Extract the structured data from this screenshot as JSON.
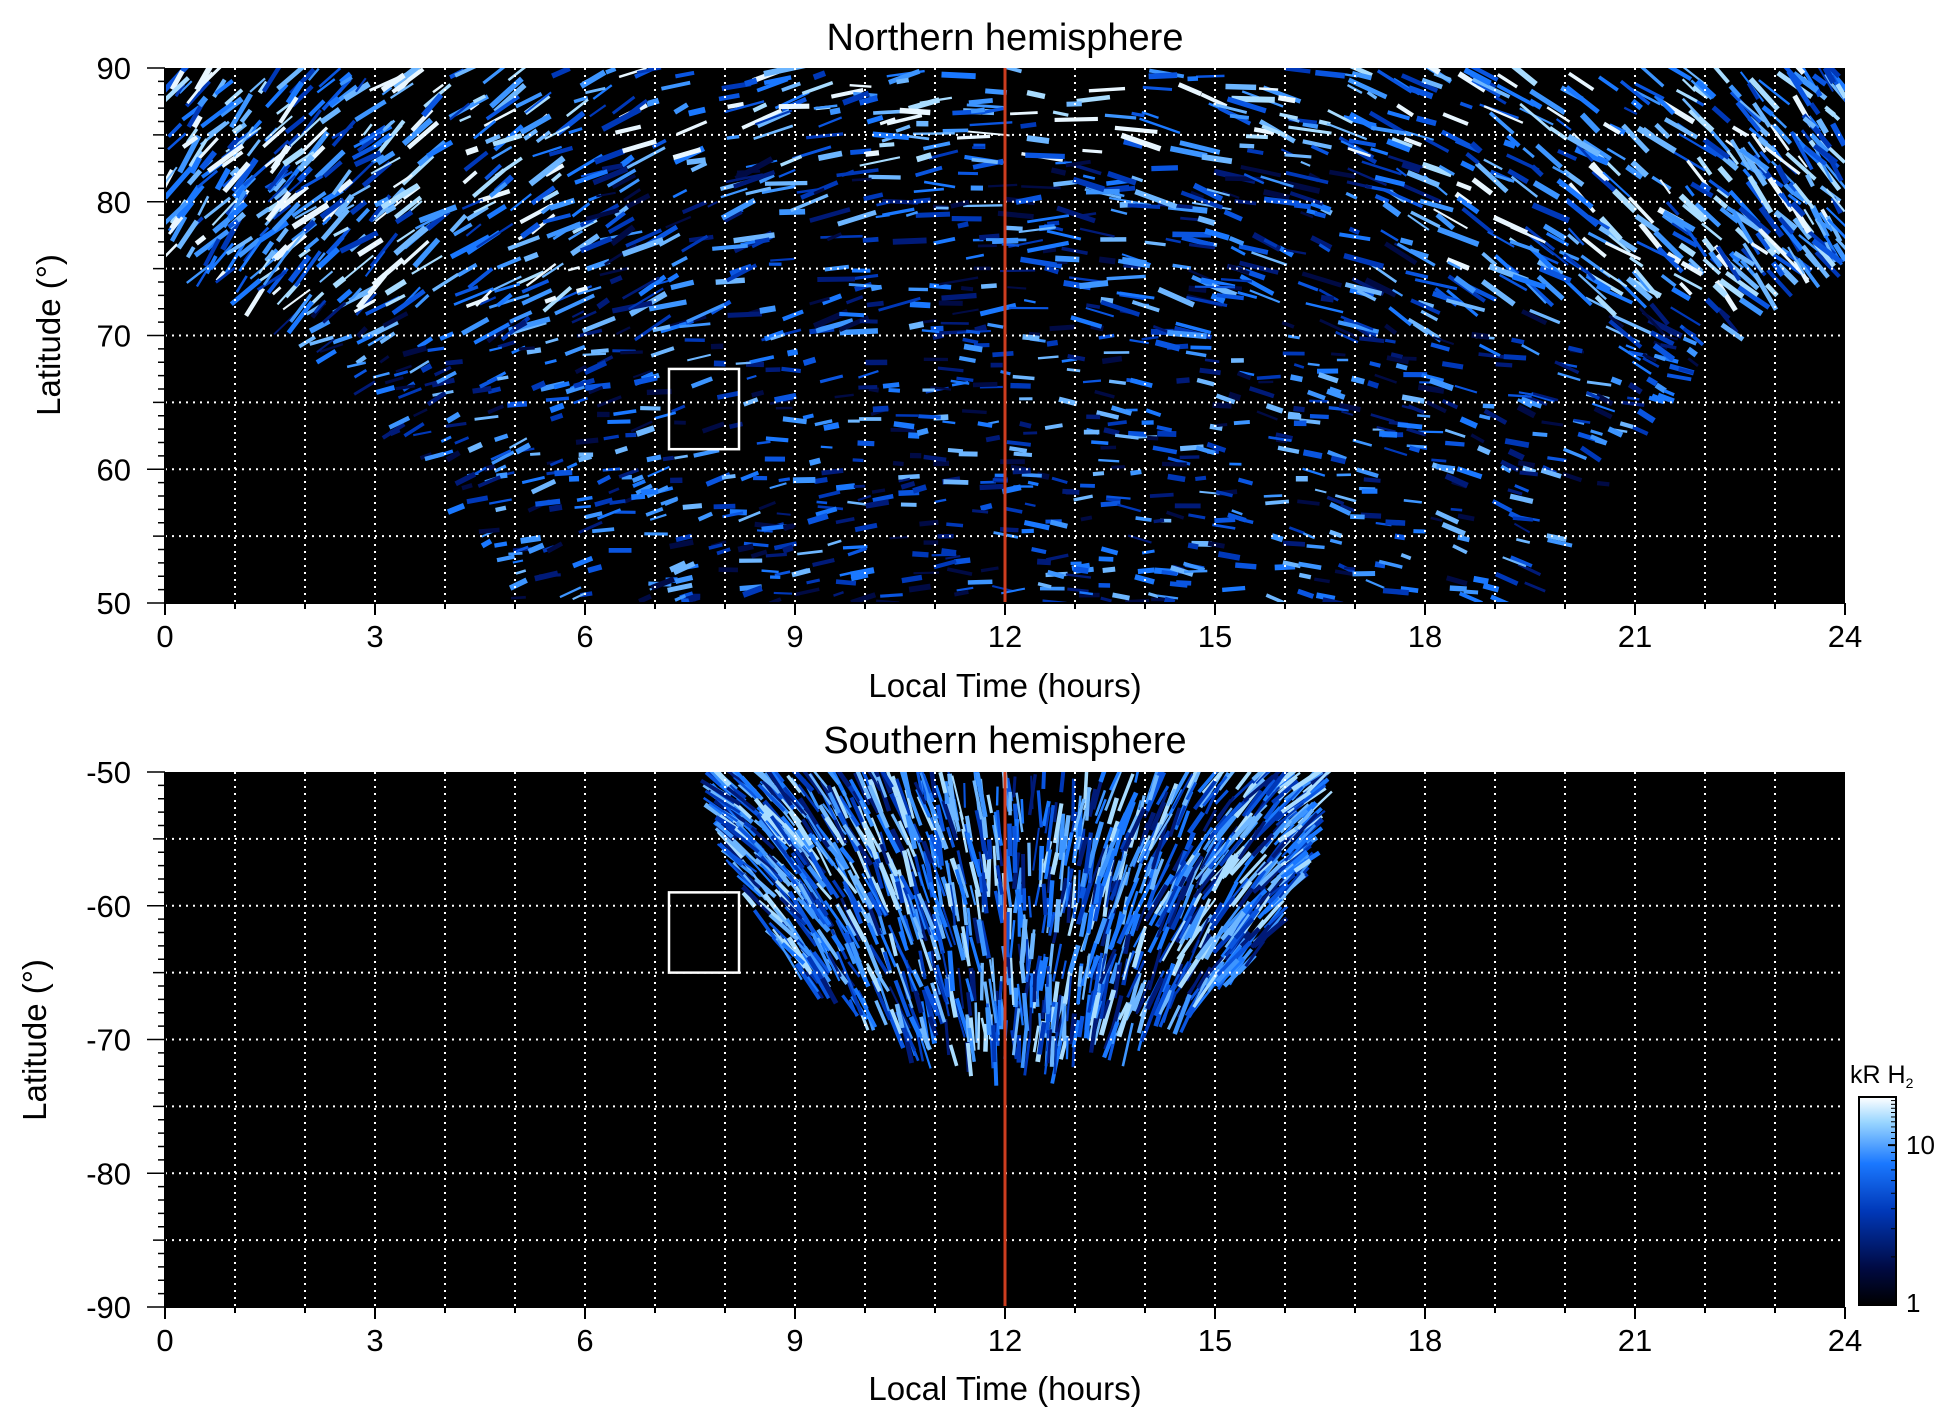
{
  "chart_data": [
    {
      "type": "heatmap",
      "title": "Northern hemisphere",
      "xlabel": "Local Time (hours)",
      "ylabel": "Latitude (°)",
      "xlim": [
        0,
        24
      ],
      "ylim": [
        50,
        90
      ],
      "xticks": [
        "0",
        "3",
        "6",
        "9",
        "12",
        "15",
        "18",
        "21",
        "24"
      ],
      "yticks": [
        "50",
        "60",
        "70",
        "80",
        "90"
      ],
      "grid": true,
      "noon_line_x": 12,
      "selection_box": {
        "x": [
          7.2,
          8.2
        ],
        "y": [
          61.5,
          67.5
        ]
      },
      "coverage": "poleward of ~75° at 0 and 24 h, widening to 50° between ~5 and ~19.5 h"
    },
    {
      "type": "heatmap",
      "title": "Southern hemisphere",
      "xlabel": "Local Time (hours)",
      "ylabel": "Latitude (°)",
      "xlim": [
        0,
        24
      ],
      "ylim": [
        -90,
        -50
      ],
      "xticks": [
        "0",
        "3",
        "6",
        "9",
        "12",
        "15",
        "18",
        "21",
        "24"
      ],
      "yticks": [
        "-90",
        "-80",
        "-70",
        "-60",
        "-50"
      ],
      "grid": true,
      "noon_line_x": 12,
      "selection_box": {
        "x": [
          7.2,
          8.2
        ],
        "y": [
          -65,
          -59
        ]
      },
      "coverage": "cap from ~8 to ~16.5 h, reaching about -72° near noon"
    }
  ],
  "colorbar": {
    "label": "kR H",
    "label_subscript": "2",
    "ticks": [
      "1",
      "10"
    ],
    "scale": "log",
    "colors": [
      "#000000",
      "#000a44",
      "#0038b8",
      "#1a78ff",
      "#9ad6ff",
      "#ffffff"
    ]
  },
  "colors": {
    "background": "#000000",
    "noon_line": "#cc3d1f",
    "grid": "#ffffff",
    "box": "#ffffff"
  }
}
